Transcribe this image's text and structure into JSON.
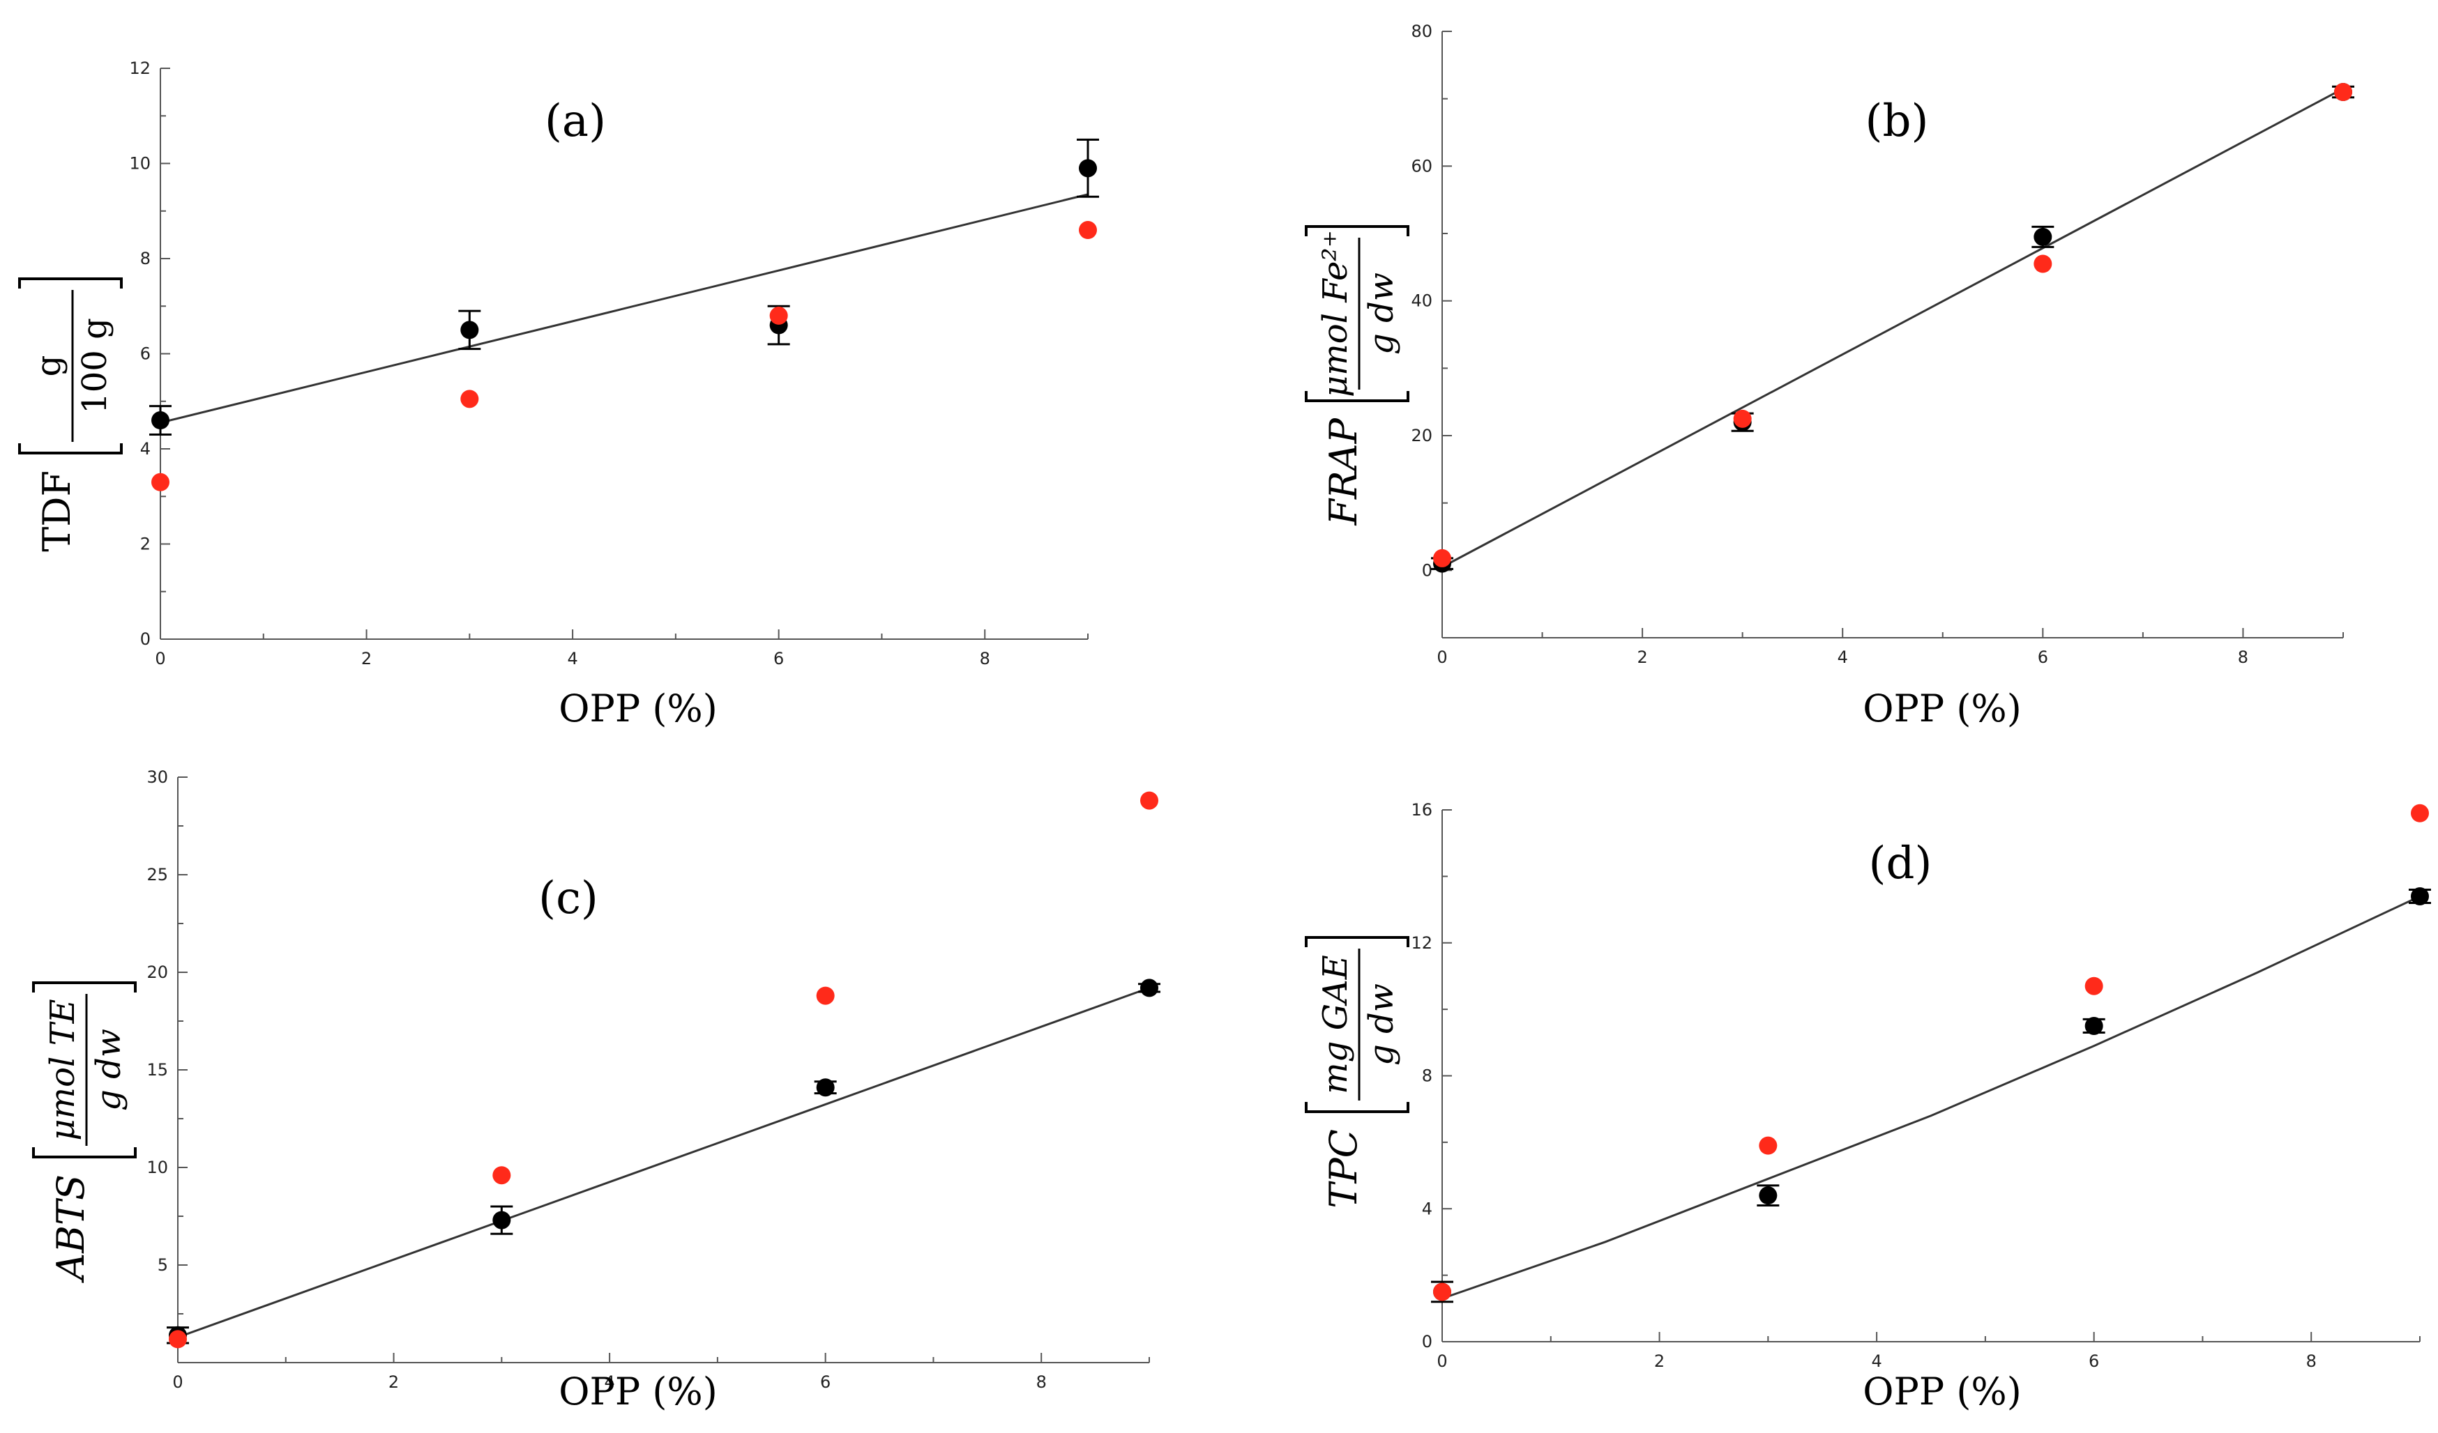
{
  "chart_data": [
    {
      "id": "a",
      "type": "scatter",
      "panel_label": "(a)",
      "xlabel": "OPP (%)",
      "ylabel": {
        "main": "TDF",
        "numerator": "g",
        "denominator": "100 g",
        "italic": false
      },
      "xlim": [
        0,
        9
      ],
      "ylim": [
        0,
        12
      ],
      "xticks": [
        0,
        2,
        4,
        6,
        8
      ],
      "yticks": [
        0,
        2,
        4,
        6,
        8,
        10,
        12
      ],
      "series": [
        {
          "name": "black",
          "color": "#000000",
          "x": [
            0,
            3,
            6,
            9
          ],
          "y": [
            4.6,
            6.5,
            6.6,
            9.9
          ],
          "err": [
            0.3,
            0.4,
            0.4,
            0.6
          ]
        },
        {
          "name": "red",
          "color": "#ff2a1a",
          "x": [
            0,
            3,
            6,
            9
          ],
          "y": [
            3.3,
            5.05,
            6.8,
            8.6
          ]
        }
      ],
      "fit": {
        "x": [
          0,
          9
        ],
        "y": [
          4.55,
          9.35
        ]
      }
    },
    {
      "id": "b",
      "type": "scatter",
      "panel_label": "(b)",
      "xlabel": "OPP (%)",
      "ylabel": {
        "main": "FRAP",
        "numerator": "μmol Fe²⁺",
        "denominator": "g dw",
        "italic": true
      },
      "xlim": [
        0,
        9
      ],
      "ylim": [
        -10,
        80
      ],
      "xticks": [
        0,
        2,
        4,
        6,
        8
      ],
      "yticks": [
        0,
        20,
        40,
        60,
        80
      ],
      "series": [
        {
          "name": "black",
          "color": "#000000",
          "x": [
            0,
            3,
            6,
            9
          ],
          "y": [
            1,
            22,
            49.5,
            71
          ],
          "err": [
            0.8,
            1.3,
            1.5,
            0.8
          ]
        },
        {
          "name": "red",
          "color": "#ff2a1a",
          "x": [
            0,
            3,
            6,
            9
          ],
          "y": [
            1.8,
            22.5,
            45.5,
            71
          ]
        }
      ],
      "fit": {
        "x": [
          0,
          9
        ],
        "y": [
          0.5,
          71.5
        ]
      }
    },
    {
      "id": "c",
      "type": "scatter",
      "panel_label": "(c)",
      "xlabel": "OPP (%)",
      "ylabel": {
        "main": "ABTS",
        "numerator": "μmol TE",
        "denominator": "g dw",
        "italic": true
      },
      "xlim": [
        0,
        9
      ],
      "ylim": [
        0,
        30
      ],
      "xticks": [
        0,
        2,
        4,
        6,
        8
      ],
      "yticks": [
        5,
        10,
        15,
        20,
        25,
        30
      ],
      "series": [
        {
          "name": "black",
          "color": "#000000",
          "x": [
            0,
            3,
            6,
            9
          ],
          "y": [
            1.4,
            7.3,
            14.1,
            19.2
          ],
          "err": [
            0.4,
            0.7,
            0.3,
            0.2
          ]
        },
        {
          "name": "red",
          "color": "#ff2a1a",
          "x": [
            0,
            3,
            6,
            9
          ],
          "y": [
            1.2,
            9.6,
            18.8,
            28.8
          ]
        }
      ],
      "fit": {
        "x": [
          0,
          9
        ],
        "y": [
          1.3,
          19.2
        ]
      }
    },
    {
      "id": "d",
      "type": "scatter",
      "panel_label": "(d)",
      "xlabel": "OPP (%)",
      "ylabel": {
        "main": "TPC",
        "numerator": "mg GAE",
        "denominator": "g dw",
        "italic": true
      },
      "xlim": [
        0,
        9
      ],
      "ylim": [
        0,
        16
      ],
      "xticks": [
        0,
        2,
        4,
        6,
        8
      ],
      "yticks": [
        0,
        4,
        8,
        12,
        16
      ],
      "series": [
        {
          "name": "black",
          "color": "#000000",
          "x": [
            0,
            3,
            6,
            9
          ],
          "y": [
            1.5,
            4.4,
            9.5,
            13.4
          ],
          "err": [
            0.3,
            0.3,
            0.2,
            0.2
          ]
        },
        {
          "name": "red",
          "color": "#ff2a1a",
          "x": [
            0,
            3,
            6,
            9
          ],
          "y": [
            1.5,
            5.9,
            10.7,
            15.9
          ]
        }
      ],
      "fit": {
        "x": [
          0,
          1.5,
          3,
          4.5,
          6,
          7.5,
          9
        ],
        "y": [
          1.3,
          3.0,
          4.9,
          6.8,
          8.9,
          11.1,
          13.4
        ]
      }
    }
  ]
}
